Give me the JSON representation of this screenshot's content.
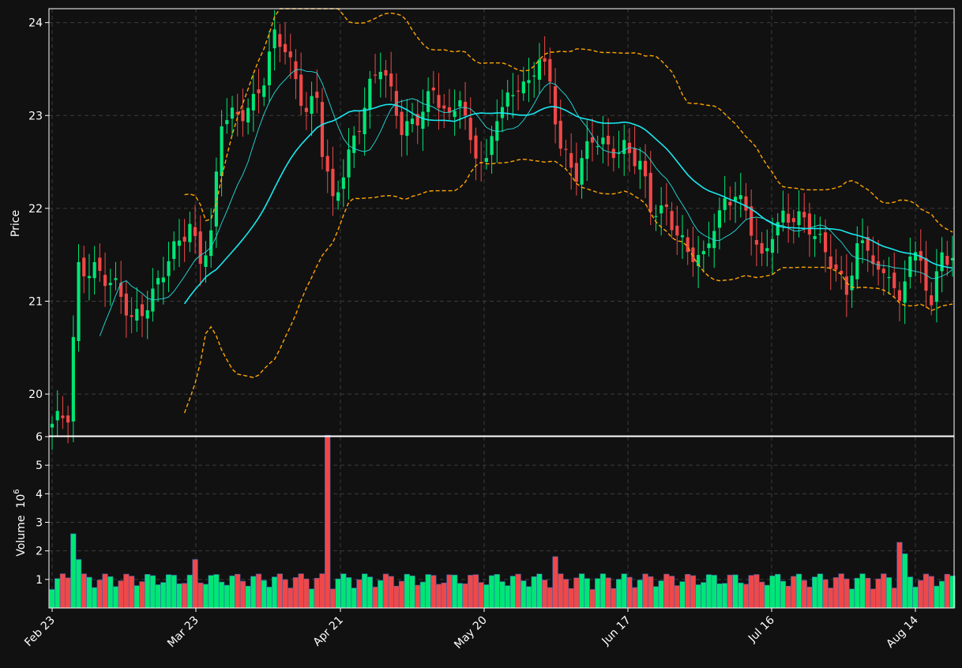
{
  "colors": {
    "background": "#111111",
    "up": "#00e676",
    "down": "#f04848",
    "sma_short": "#24dede",
    "sma_long": "#1ae8f0",
    "bands": "#ffa500",
    "grid": "#3c3c3c",
    "text": "#ffffff",
    "axes": "#ffffff"
  },
  "chart_data": [
    {
      "type": "candlestick",
      "title": "",
      "ylabel": "Price",
      "ylim": [
        19.55,
        24.15
      ],
      "yticks": [
        "20",
        "21",
        "22",
        "23",
        "24"
      ],
      "x_tick_labels": [
        "Feb 23",
        "Mar 23",
        "Apr 21",
        "May 20",
        "Jun 17",
        "Jul 16",
        "Aug 14"
      ],
      "grid": true,
      "overlays": [
        "sma-short",
        "sma-long",
        "bollinger-upper",
        "bollinger-lower"
      ]
    },
    {
      "type": "bar",
      "ylabel": "Volume",
      "ylabel_multiplier": "10",
      "ylabel_exponent": "6",
      "ylim": [
        0,
        6.0
      ],
      "yticks": [
        "1",
        "2",
        "3",
        "4",
        "5",
        "6"
      ],
      "grid": true
    }
  ]
}
